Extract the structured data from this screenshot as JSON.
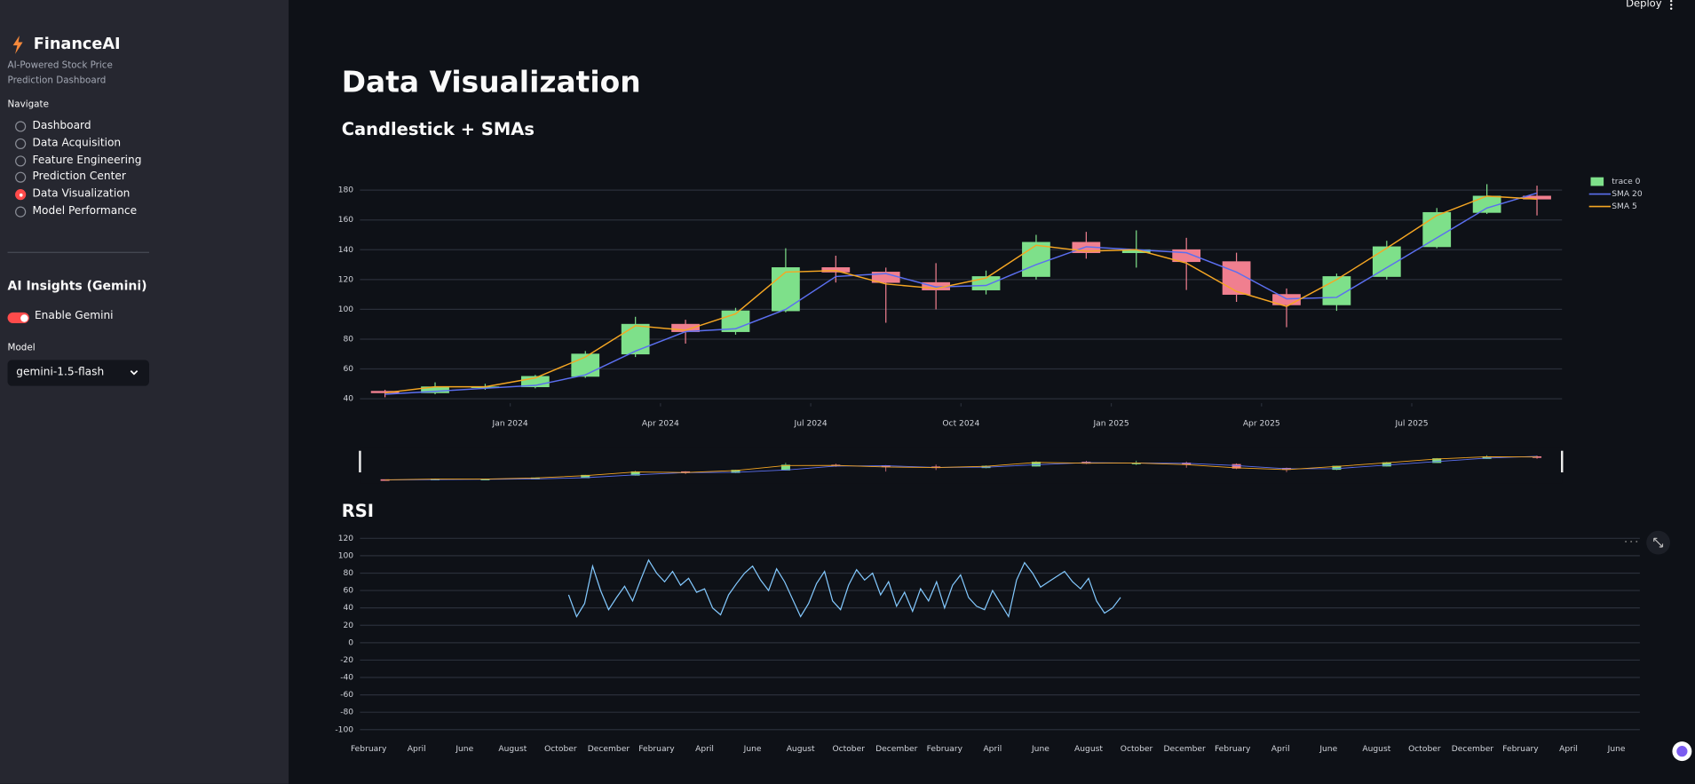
{
  "header": {
    "deploy": "Deploy"
  },
  "sidebar": {
    "brand": "FinanceAI",
    "subtitle": "AI-Powered Stock Price Prediction Dashboard",
    "nav_label": "Navigate",
    "nav_items": [
      "Dashboard",
      "Data Acquisition",
      "Feature Engineering",
      "Prediction Center",
      "Data Visualization",
      "Model Performance"
    ],
    "selected": 4,
    "insights_title": "AI Insights (Gemini)",
    "toggle_label": "Enable Gemini",
    "toggle_on": true,
    "model_label": "Model",
    "model_value": "gemini-1.5-flash"
  },
  "page_title": "Data Visualization",
  "chart_data": [
    {
      "type": "candlestick",
      "title": "Candlestick + SMAs",
      "x": [
        "2023-10",
        "2023-11",
        "2023-12",
        "2024-01",
        "2024-02",
        "2024-03",
        "2024-04",
        "2024-05",
        "2024-06",
        "2024-07",
        "2024-08",
        "2024-09",
        "2024-10",
        "2024-11",
        "2024-12",
        "2025-01",
        "2025-02",
        "2025-03",
        "2025-04",
        "2025-05",
        "2025-06",
        "2025-07",
        "2025-08",
        "2025-09"
      ],
      "xlim": [
        "2023-10",
        "2025-10"
      ],
      "xticks": [
        {
          "value": "2024-01",
          "label": "Jan 2024"
        },
        {
          "value": "2024-04",
          "label": "Apr 2024"
        },
        {
          "value": "2024-07",
          "label": "Jul 2024"
        },
        {
          "value": "2024-10",
          "label": "Oct 2024"
        },
        {
          "value": "2025-01",
          "label": "Jan 2025"
        },
        {
          "value": "2025-04",
          "label": "Apr 2025"
        },
        {
          "value": "2025-07",
          "label": "Jul 2025"
        }
      ],
      "ylim": [
        37,
        185
      ],
      "yticks": [
        40,
        60,
        80,
        100,
        120,
        140,
        160,
        180
      ],
      "grid": true,
      "legend": "top-right",
      "range_slider": true,
      "series": [
        {
          "name": "trace 0",
          "increasing_color": "#7ee08a",
          "decreasing_color": "#f07f8f",
          "open": [
            45,
            44,
            48,
            48,
            55,
            70,
            90,
            85,
            99,
            128,
            125,
            118,
            113,
            122,
            145,
            138,
            140,
            132,
            110,
            103,
            122,
            142,
            165,
            176
          ],
          "high": [
            46,
            51,
            50,
            56,
            72,
            95,
            93,
            101,
            141,
            136,
            128,
            131,
            126,
            150,
            152,
            153,
            148,
            138,
            114,
            124,
            146,
            168,
            184,
            183
          ],
          "low": [
            41,
            43,
            46,
            47,
            54,
            68,
            77,
            83,
            98,
            118,
            91,
            100,
            110,
            120,
            134,
            128,
            113,
            105,
            88,
            99,
            120,
            141,
            164,
            163
          ],
          "close": [
            44,
            48,
            48,
            55,
            70,
            90,
            85,
            99,
            128,
            125,
            118,
            113,
            122,
            145,
            138,
            140,
            132,
            110,
            103,
            122,
            142,
            165,
            176,
            174
          ]
        },
        {
          "name": "SMA 20",
          "color": "#5b6ff0",
          "values": [
            43,
            45,
            47,
            49,
            56,
            72,
            85,
            87,
            100,
            122,
            124,
            115,
            116,
            130,
            142,
            140,
            138,
            125,
            107,
            108,
            128,
            148,
            168,
            178
          ]
        },
        {
          "name": "SMA 5",
          "color": "#f5a623",
          "values": [
            44,
            48,
            48,
            54,
            68,
            89,
            86,
            97,
            125,
            126,
            117,
            114,
            121,
            143,
            139,
            140,
            131,
            112,
            102,
            120,
            141,
            163,
            176,
            174
          ]
        }
      ]
    },
    {
      "type": "line",
      "title": "RSI",
      "color": "#83c9ff",
      "grid": true,
      "ylim": [
        -100,
        120
      ],
      "yticks": [
        120,
        100,
        80,
        60,
        40,
        20,
        0,
        -20,
        -40,
        -60,
        -80,
        -100
      ],
      "categories": [
        "February",
        null,
        null,
        null,
        null,
        null,
        "April",
        null,
        null,
        null,
        null,
        null,
        "June",
        null,
        null,
        null,
        null,
        null,
        "August",
        null,
        null,
        null,
        null,
        null,
        "October",
        null,
        null,
        null,
        null,
        null,
        "December",
        null,
        null,
        null,
        null,
        null,
        "February",
        null,
        null,
        null,
        null,
        null,
        "April",
        null,
        null,
        null,
        null,
        null,
        "June",
        null,
        null,
        null,
        null,
        null,
        "August",
        null,
        null,
        null,
        null,
        null,
        "October",
        null,
        null,
        null,
        null,
        null,
        "December",
        null,
        null,
        null,
        null,
        null,
        "February",
        null,
        null,
        null,
        null,
        null,
        "April",
        null,
        null,
        null,
        null,
        null,
        "June",
        null,
        null,
        null,
        null,
        null,
        "August",
        null,
        null,
        null,
        null,
        null,
        "October",
        null,
        null,
        null,
        null,
        null,
        "December",
        null,
        null,
        null,
        null,
        null,
        "February",
        null,
        null,
        null,
        null,
        null,
        "April",
        null,
        null,
        null,
        null,
        null,
        "June",
        null,
        null,
        null,
        null,
        null,
        "August",
        null,
        null,
        null,
        null,
        null,
        "October",
        null,
        null,
        null,
        null,
        null,
        "December",
        null,
        null,
        null,
        null,
        null,
        "February",
        null,
        null,
        null,
        null,
        null,
        "April",
        null,
        null,
        null,
        null,
        null,
        "June"
      ],
      "values": [
        null,
        null,
        null,
        null,
        null,
        null,
        null,
        null,
        null,
        null,
        null,
        null,
        null,
        null,
        null,
        null,
        null,
        null,
        null,
        null,
        null,
        null,
        null,
        null,
        null,
        55,
        30,
        45,
        88,
        60,
        38,
        52,
        65,
        48,
        72,
        95,
        80,
        70,
        82,
        66,
        74,
        58,
        62,
        40,
        32,
        55,
        68,
        80,
        88,
        72,
        60,
        85,
        70,
        50,
        30,
        45,
        68,
        82,
        48,
        38,
        66,
        84,
        72,
        80,
        55,
        70,
        42,
        58,
        36,
        62,
        48,
        70,
        40,
        66,
        78,
        52,
        42,
        38,
        60,
        45,
        30,
        72,
        92,
        80,
        64,
        70,
        76,
        82,
        70,
        62,
        74,
        48,
        34,
        40,
        52,
        null,
        null,
        null,
        null,
        null,
        null,
        null,
        null,
        null,
        null,
        null,
        null,
        null,
        null,
        null,
        null,
        null,
        null,
        null,
        null,
        null,
        null,
        null,
        null,
        null,
        null,
        null,
        null,
        null,
        null,
        null,
        null,
        null,
        null,
        null,
        null,
        null,
        null,
        null,
        null,
        null,
        null,
        null,
        null,
        null,
        null,
        null,
        null,
        null,
        null,
        null,
        null,
        null,
        null,
        null,
        null,
        null,
        null,
        null,
        null,
        null,
        null
      ]
    }
  ]
}
